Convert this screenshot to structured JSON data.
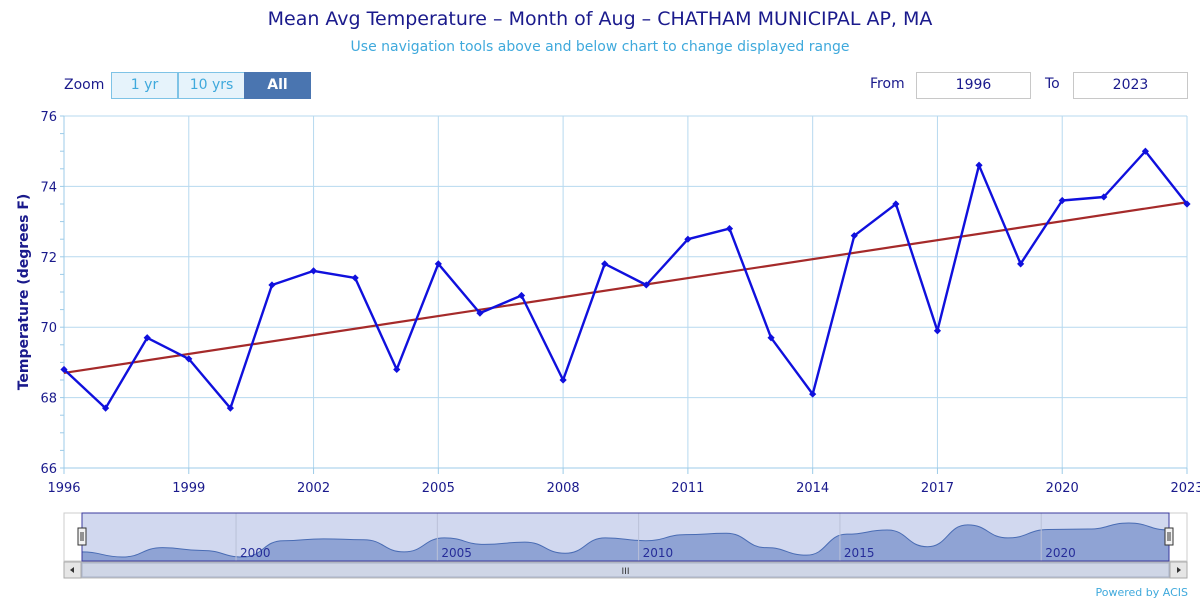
{
  "header": {
    "title": "Mean Avg Temperature – Month of Aug – CHATHAM MUNICIPAL AP, MA",
    "subtitle": "Use navigation tools above and below chart to change displayed range"
  },
  "zoom": {
    "label": "Zoom",
    "buttons": [
      {
        "label": "1 yr",
        "active": false
      },
      {
        "label": "10 yrs",
        "active": false
      },
      {
        "label": "All",
        "active": true
      }
    ]
  },
  "range": {
    "from_label": "From",
    "from_value": "1996",
    "to_label": "To",
    "to_value": "2023"
  },
  "footer": {
    "powered_by": "Powered by ACIS"
  },
  "colors": {
    "series": "#1010dd",
    "trend": "#a52a2a",
    "grid": "#b7d9ef",
    "axis_text": "#1a1a8c",
    "navigator": "#a7b8db"
  },
  "chart_data": {
    "type": "line",
    "ylabel": "Temperature (degrees F)",
    "xlabel": "",
    "ylim": [
      66,
      76
    ],
    "xlim": [
      1996,
      2023
    ],
    "y_ticks": [
      "66",
      "68",
      "70",
      "72",
      "74",
      "76"
    ],
    "x_ticks": [
      "1996",
      "1999",
      "2002",
      "2005",
      "2008",
      "2011",
      "2014",
      "2017",
      "2020",
      "2023"
    ],
    "grid": true,
    "series": [
      {
        "x": [
          1996,
          1997,
          1998,
          1999,
          2000,
          2001,
          2002,
          2003,
          2004,
          2005,
          2006,
          2007,
          2008,
          2009,
          2010,
          2011,
          2012,
          2013,
          2014,
          2015,
          2016,
          2017,
          2018,
          2019,
          2020,
          2021,
          2022,
          2023
        ],
        "values": [
          68.8,
          67.7,
          69.7,
          69.1,
          67.7,
          71.2,
          71.6,
          71.4,
          68.8,
          71.8,
          70.4,
          70.9,
          68.5,
          71.8,
          71.2,
          72.5,
          72.8,
          69.7,
          68.1,
          72.6,
          73.5,
          69.9,
          74.6,
          71.8,
          73.6,
          73.7,
          75.0,
          73.5
        ]
      }
    ],
    "trend": {
      "x": [
        1996,
        2023
      ],
      "values": [
        68.7,
        73.55
      ]
    },
    "navigator": {
      "tick_labels": [
        "2000",
        "2005",
        "2010",
        "2015",
        "2020"
      ],
      "tick_years": [
        2000,
        2005,
        2010,
        2015,
        2020
      ],
      "scroll_label": "III"
    }
  }
}
